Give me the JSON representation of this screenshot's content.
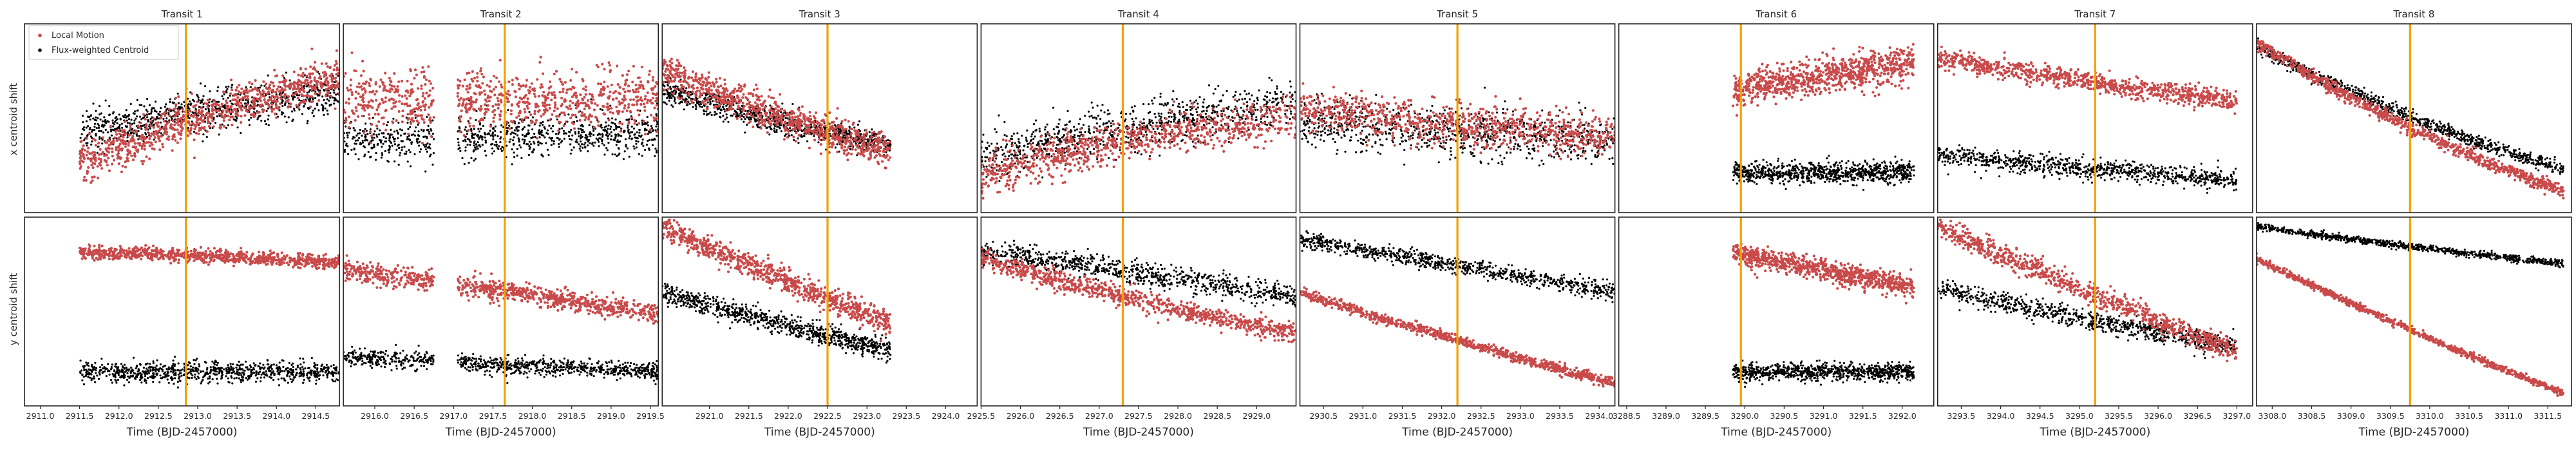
{
  "figure": {
    "row_labels": [
      "x centroid shift",
      "y centroid shift"
    ],
    "x_axis_label": "Time (BJD-2457000)"
  },
  "legend": {
    "local_label": "Local Motion",
    "flux_label": "Flux-weighted Centroid",
    "placement": "upper-left of first panel"
  },
  "colors": {
    "local_motion": "#c94a4a",
    "flux_centroid": "#000000",
    "transit_line": "#f5a000"
  },
  "chart_data": {
    "type": "scatter",
    "grid": false,
    "series": [
      {
        "name": "Local Motion",
        "color": "#c94a4a"
      },
      {
        "name": "Flux-weighted Centroid",
        "color": "#000000"
      }
    ],
    "transits": [
      {
        "title": "Transit 1",
        "xlim": [
          2910.8,
          2914.8
        ],
        "xticks": [
          "2911.0",
          "2911.5",
          "2912.0",
          "2912.5",
          "2913.0",
          "2913.5",
          "2914.0",
          "2914.5"
        ],
        "transit_time": 2912.85,
        "segments": [
          [
            2911.5,
            2914.8
          ]
        ],
        "x_local": {
          "start": 0.15,
          "end": 0.72,
          "curve": 1.8,
          "spread": 0.12
        },
        "x_flux": {
          "start": 0.35,
          "end": 0.63,
          "curve": 1.6,
          "spread": 0.12
        },
        "y_local": {
          "start": 0.82,
          "end": 0.76,
          "curve": 0.4,
          "spread": 0.04
        },
        "y_flux": {
          "start": 0.18,
          "end": 0.18,
          "curve": 0,
          "spread": 0.06
        }
      },
      {
        "title": "Transit 2",
        "xlim": [
          2915.6,
          2919.6
        ],
        "xticks": [
          "2916.0",
          "2916.5",
          "2917.0",
          "2917.5",
          "2918.0",
          "2918.5",
          "2919.0",
          "2919.5"
        ],
        "transit_time": 2917.65,
        "segments": [
          [
            2915.6,
            2916.75
          ],
          [
            2917.05,
            2919.6
          ]
        ],
        "x_local": {
          "start": 0.6,
          "end": 0.6,
          "curve": 0,
          "spread": 0.18
        },
        "x_flux": {
          "start": 0.38,
          "end": 0.42,
          "curve": 0,
          "spread": 0.12
        },
        "y_local": {
          "start": 0.72,
          "end": 0.48,
          "curve": 0.6,
          "spread": 0.06
        },
        "y_flux": {
          "start": 0.26,
          "end": 0.18,
          "curve": 0,
          "spread": 0.05
        }
      },
      {
        "title": "Transit 3",
        "xlim": [
          2920.4,
          2924.4
        ],
        "xticks": [
          "2921.0",
          "2921.5",
          "2922.0",
          "2922.5",
          "2923.0",
          "2923.5",
          "2924.0"
        ],
        "transit_time": 2922.5,
        "segments": [
          [
            2920.4,
            2923.3
          ]
        ],
        "x_local": {
          "start": 0.75,
          "end": 0.2,
          "curve": -2.0,
          "spread": 0.1
        },
        "x_flux": {
          "start": 0.65,
          "end": 0.3,
          "curve": -2.0,
          "spread": 0.07
        },
        "y_local": {
          "start": 0.95,
          "end": 0.25,
          "curve": -0.6,
          "spread": 0.07
        },
        "y_flux": {
          "start": 0.6,
          "end": 0.2,
          "curve": -0.8,
          "spread": 0.06
        }
      },
      {
        "title": "Transit 4",
        "xlim": [
          2925.5,
          2929.5
        ],
        "xticks": [
          "2925.5",
          "2926.0",
          "2926.5",
          "2927.0",
          "2927.5",
          "2928.0",
          "2928.5",
          "2929.0"
        ],
        "transit_time": 2927.3,
        "segments": [
          [
            2925.5,
            2929.5
          ]
        ],
        "x_local": {
          "start": 0.2,
          "end": 0.5,
          "curve": 2.0,
          "spread": 0.12
        },
        "x_flux": {
          "start": 0.28,
          "end": 0.58,
          "curve": 1.6,
          "spread": 0.14
        },
        "y_local": {
          "start": 0.78,
          "end": 0.38,
          "curve": -1.0,
          "spread": 0.06
        },
        "y_flux": {
          "start": 0.82,
          "end": 0.58,
          "curve": 0,
          "spread": 0.07
        }
      },
      {
        "title": "Transit 5",
        "xlim": [
          2930.2,
          2934.2
        ],
        "xticks": [
          "2930.5",
          "2931.0",
          "2931.5",
          "2932.0",
          "2932.5",
          "2933.0",
          "2933.5",
          "2934.0"
        ],
        "transit_time": 2932.2,
        "segments": [
          [
            2930.2,
            2934.2
          ]
        ],
        "x_local": {
          "start": 0.55,
          "end": 0.4,
          "curve": -0.5,
          "spread": 0.12
        },
        "x_flux": {
          "start": 0.48,
          "end": 0.38,
          "curve": -0.3,
          "spread": 0.14
        },
        "y_local": {
          "start": 0.6,
          "end": 0.12,
          "curve": -0.6,
          "spread": 0.03
        },
        "y_flux": {
          "start": 0.88,
          "end": 0.6,
          "curve": 0.2,
          "spread": 0.05
        }
      },
      {
        "title": "Transit 6",
        "xlim": [
          3288.4,
          3292.4
        ],
        "xticks": [
          "3288.5",
          "3289.0",
          "3289.5",
          "3290.0",
          "3290.5",
          "3291.0",
          "3291.5",
          "3292.0"
        ],
        "transit_time": 3289.95,
        "segments": [
          [
            3289.85,
            3292.15
          ]
        ],
        "x_local": {
          "start": 0.55,
          "end": 0.8,
          "curve": 0.6,
          "spread": 0.1
        },
        "x_flux": {
          "start": 0.2,
          "end": 0.22,
          "curve": 0,
          "spread": 0.06
        },
        "y_local": {
          "start": 0.95,
          "end": 0.62,
          "curve": -1.0,
          "spread": 0.06
        },
        "y_flux": {
          "start": 0.18,
          "end": 0.18,
          "curve": 0,
          "spread": 0.05
        }
      },
      {
        "title": "Transit 7",
        "xlim": [
          3293.2,
          3297.2
        ],
        "xticks": [
          "3293.5",
          "3294.0",
          "3294.5",
          "3295.0",
          "3295.5",
          "3296.0",
          "3296.5",
          "3297.0"
        ],
        "transit_time": 3295.2,
        "segments": [
          [
            3293.2,
            3297.0
          ]
        ],
        "x_local": {
          "start": 0.82,
          "end": 0.58,
          "curve": -0.6,
          "spread": 0.06
        },
        "x_flux": {
          "start": 0.3,
          "end": 0.16,
          "curve": 0,
          "spread": 0.06
        },
        "y_local": {
          "start": 0.95,
          "end": 0.25,
          "curve": -0.6,
          "spread": 0.07
        },
        "y_flux": {
          "start": 0.62,
          "end": 0.3,
          "curve": -0.5,
          "spread": 0.06
        }
      },
      {
        "title": "Transit 8",
        "xlim": [
          3307.8,
          3311.8
        ],
        "xticks": [
          "3308.0",
          "3308.5",
          "3309.0",
          "3309.5",
          "3310.0",
          "3310.5",
          "3311.0",
          "3311.5"
        ],
        "transit_time": 3309.75,
        "segments": [
          [
            3307.8,
            3311.7
          ]
        ],
        "x_local": {
          "start": 0.9,
          "end": 0.1,
          "curve": -3.0,
          "spread": 0.04
        },
        "x_flux": {
          "start": 0.88,
          "end": 0.22,
          "curve": -2.5,
          "spread": 0.04
        },
        "y_local": {
          "start": 0.78,
          "end": 0.05,
          "curve": -1.0,
          "spread": 0.02
        },
        "y_flux": {
          "start": 0.95,
          "end": 0.75,
          "curve": -0.4,
          "spread": 0.02
        }
      }
    ]
  }
}
